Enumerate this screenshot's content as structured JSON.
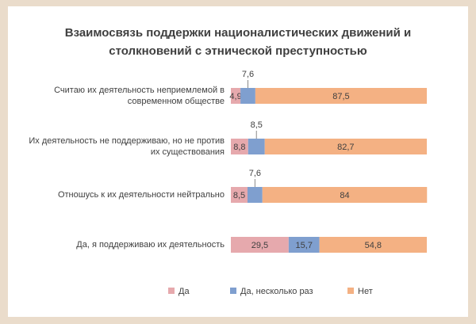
{
  "chart_data": {
    "type": "stacked-bar-horizontal",
    "title": "Взаимосвязь поддержки националистических движений и столкновений с этнической преступностью",
    "categories": [
      "Считаю их деятельность неприемлемой в современном обществе",
      "Их деятельность не поддерживаю, но не против их существования",
      "Отношусь к их деятельности нейтрально",
      "Да, я поддерживаю их деятельность"
    ],
    "series": [
      {
        "name": "Да",
        "color": "#e6a9ad",
        "values": [
          4.9,
          8.8,
          8.5,
          29.5
        ],
        "value_labels": [
          "4,9",
          "8,8",
          "8,5",
          "29,5"
        ]
      },
      {
        "name": "Да, несколько раз",
        "color": "#7f9fcf",
        "values": [
          7.6,
          8.5,
          7.6,
          15.7
        ],
        "value_labels": [
          "7,6",
          "8,5",
          "7,6",
          "15,7"
        ]
      },
      {
        "name": "Нет",
        "color": "#f4b183",
        "values": [
          87.5,
          82.7,
          84,
          54.8
        ],
        "value_labels": [
          "87,5",
          "82,7",
          "84",
          "54,8"
        ]
      }
    ],
    "xlim": [
      0,
      100
    ],
    "legend": "bottom"
  }
}
